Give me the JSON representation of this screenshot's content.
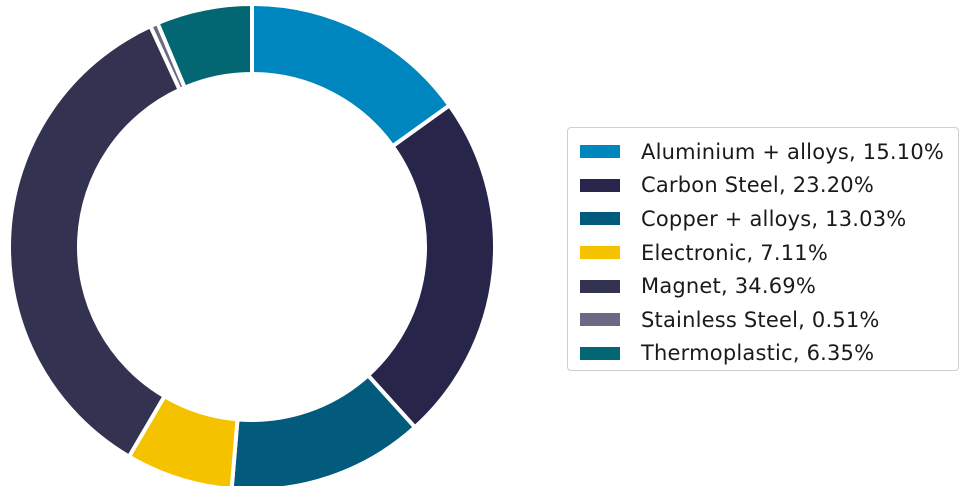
{
  "chart_data": {
    "type": "pie",
    "style": "donut",
    "start_angle_deg": 90,
    "direction": "clockwise",
    "series": [
      {
        "name": "Aluminium + alloys",
        "value": 15.1,
        "label": "Aluminium + alloys, 15.10%",
        "color": "#0086bf"
      },
      {
        "name": "Carbon Steel",
        "value": 23.2,
        "label": "Carbon Steel, 23.20%",
        "color": "#27254a"
      },
      {
        "name": "Copper + alloys",
        "value": 13.03,
        "label": "Copper + alloys, 13.03%",
        "color": "#025a7c"
      },
      {
        "name": "Electronic",
        "value": 7.11,
        "label": "Electronic, 7.11%",
        "color": "#f5c200"
      },
      {
        "name": "Magnet",
        "value": 34.69,
        "label": "Magnet, 34.69%",
        "color": "#343251"
      },
      {
        "name": "Stainless Steel",
        "value": 0.51,
        "label": "Stainless Steel, 0.51%",
        "color": "#6c6985"
      },
      {
        "name": "Thermoplastic",
        "value": 6.35,
        "label": "Thermoplastic, 6.35%",
        "color": "#026673"
      }
    ],
    "legend_position": "right",
    "title": "",
    "xlabel": "",
    "ylabel": ""
  }
}
